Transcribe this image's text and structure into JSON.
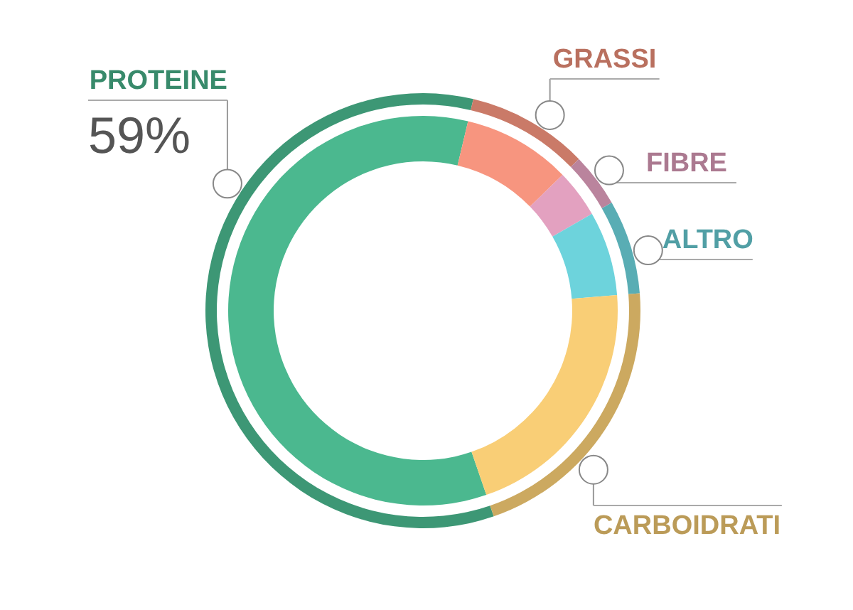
{
  "chart_data": {
    "type": "donut",
    "categories": [
      "PROTEINE",
      "GRASSI",
      "FIBRE",
      "ALTRO",
      "CARBOIDRATI"
    ],
    "series": [
      {
        "values": [
          59,
          9,
          4,
          7,
          21
        ],
        "colors": [
          "#3d9775",
          "#ca7a68",
          "#ba849d",
          "#59adb4",
          "#cca960"
        ]
      },
      {
        "values": [
          59,
          9,
          4,
          7,
          21
        ],
        "colors": [
          "#4bb88f",
          "#f7957f",
          "#e3a1c0",
          "#6dd3dc",
          "#f9ce76"
        ]
      }
    ],
    "value_labels": [
      "59%",
      null,
      null,
      null,
      null
    ]
  }
}
